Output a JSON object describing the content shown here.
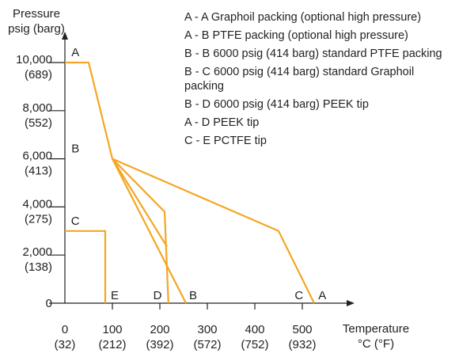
{
  "chart_data": {
    "type": "line",
    "title": "",
    "ylabel": [
      "Pressure",
      "psig (barg)"
    ],
    "xlabel": [
      "Temperature",
      "°C (°F)"
    ],
    "xlim": [
      0,
      580
    ],
    "ylim": [
      0,
      10000
    ],
    "y_ticks": [
      {
        "value": 0,
        "lines": [
          "0"
        ]
      },
      {
        "value": 2000,
        "lines": [
          "2,000",
          "(138)"
        ]
      },
      {
        "value": 4000,
        "lines": [
          "4,000",
          "(275)"
        ]
      },
      {
        "value": 6000,
        "lines": [
          "6,000",
          "(413)"
        ]
      },
      {
        "value": 8000,
        "lines": [
          "8,000",
          "(552)"
        ]
      },
      {
        "value": 10000,
        "lines": [
          "10,000",
          "(689)"
        ]
      }
    ],
    "x_ticks": [
      {
        "value": 0,
        "lines": [
          "0",
          "(32)"
        ]
      },
      {
        "value": 100,
        "lines": [
          "100",
          "(212)"
        ]
      },
      {
        "value": 200,
        "lines": [
          "200",
          "(392)"
        ]
      },
      {
        "value": 300,
        "lines": [
          "300",
          "(572)"
        ]
      },
      {
        "value": 400,
        "lines": [
          "400",
          "(752)"
        ]
      },
      {
        "value": 500,
        "lines": [
          "500",
          "(932)"
        ]
      }
    ],
    "series": [
      {
        "x": [
          0,
          50,
          100,
          450,
          525
        ],
        "y": [
          10000,
          10000,
          6000,
          3000,
          0
        ]
      },
      {
        "x": [
          100,
          255
        ],
        "y": [
          6000,
          0
        ]
      },
      {
        "x": [
          100,
          210,
          218
        ],
        "y": [
          6000,
          3800,
          0
        ]
      },
      {
        "x": [
          100,
          215
        ],
        "y": [
          6000,
          2350
        ]
      },
      {
        "x": [
          0,
          85,
          85
        ],
        "y": [
          3000,
          3000,
          0
        ]
      }
    ],
    "point_labels": [
      {
        "text": "A",
        "x": 22,
        "y": 10000
      },
      {
        "text": "B",
        "x": 22,
        "y": 6000
      },
      {
        "text": "C",
        "x": 22,
        "y": 3000
      },
      {
        "text": "E",
        "x": 105,
        "y": 0
      },
      {
        "text": "D",
        "x": 195,
        "y": 0
      },
      {
        "text": "B",
        "x": 270,
        "y": 0
      },
      {
        "text": "C",
        "x": 493,
        "y": 0
      },
      {
        "text": "A",
        "x": 542,
        "y": 0
      }
    ],
    "legend_position": "top-right",
    "legend": [
      [
        "A - A  Graphoil packing (optional high pressure)"
      ],
      [
        "A - B  PTFE packing (optional high pressure)"
      ],
      [
        "B - B  6000 psig (414 barg) standard PTFE packing"
      ],
      [
        "B - C  6000 psig (414 barg) standard Graphoil",
        "packing"
      ],
      [
        "B - D  6000 psig (414 barg) PEEK tip"
      ],
      [
        "A - D  PEEK tip"
      ],
      [
        "C - E  PCTFE tip"
      ]
    ],
    "colors": {
      "line": "#F5A623",
      "axis": "#222222"
    }
  }
}
